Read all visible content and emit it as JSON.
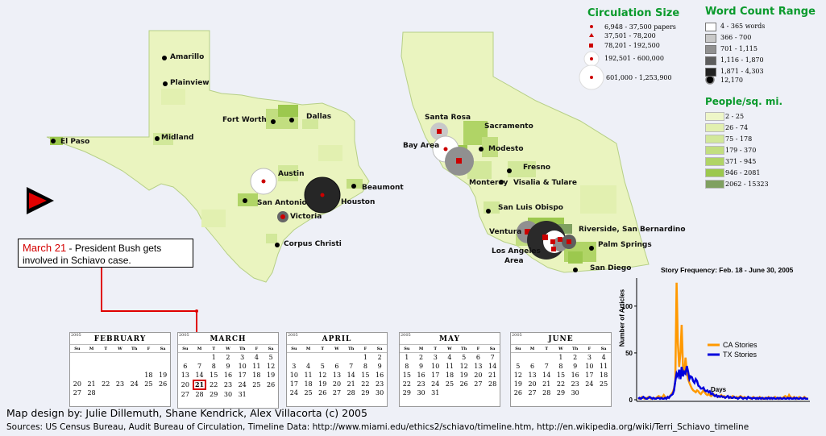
{
  "legend": {
    "circulation": {
      "title": "Circulation Size",
      "items": [
        "6,948 - 37,500 papers",
        "37,501 - 78,200",
        "78,201 - 192,500",
        "192,501 - 600,000",
        "601,000 - 1,253,900"
      ]
    },
    "word_count": {
      "title": "Word Count Range",
      "items": [
        {
          "label": "4 - 365 words",
          "color": "#ffffff"
        },
        {
          "label": "366 - 700",
          "color": "#c8c8c8"
        },
        {
          "label": "701 - 1,115",
          "color": "#909090"
        },
        {
          "label": "1,116 - 1,870",
          "color": "#5e5e5e"
        },
        {
          "label": "1,871 - 4,303",
          "color": "#222222"
        },
        {
          "label": "12,170",
          "color": "#000000"
        }
      ]
    },
    "density": {
      "title": "People/sq. mi.",
      "items": [
        {
          "label": "2 - 25",
          "color": "#eef6c8"
        },
        {
          "label": "26 - 74",
          "color": "#e2f0b0"
        },
        {
          "label": "75 - 178",
          "color": "#d2e89a"
        },
        {
          "label": "179 - 370",
          "color": "#c2de80"
        },
        {
          "label": "371 - 945",
          "color": "#b0d466"
        },
        {
          "label": "946 - 2081",
          "color": "#9cc84e"
        },
        {
          "label": "2062 - 15323",
          "color": "#7fa060"
        }
      ]
    }
  },
  "cities": {
    "texas": [
      "Amarillo",
      "Plainview",
      "Fort Worth",
      "Dallas",
      "El Paso",
      "Midland",
      "Austin",
      "San Antonio",
      "Houston",
      "Beaumont",
      "Victoria",
      "Corpus Christi"
    ],
    "california": [
      "Santa Rosa",
      "Sacramento",
      "Bay Area",
      "Modesto",
      "Fresno",
      "Monterey",
      "Visalia & Tulare",
      "San Luis Obispo",
      "Ventura",
      "Riverside, San Bernardino",
      "Palm Springs",
      "Los Angeles",
      "Area",
      "San Diego"
    ]
  },
  "callout": {
    "date": "March 21",
    "text": " - President Bush gets involved in Schiavo case."
  },
  "calendar": {
    "year": "2005",
    "weekdays": [
      "Su",
      "M",
      "T",
      "W",
      "Th",
      "F",
      "Sa"
    ],
    "months": [
      {
        "name": "FEBRUARY",
        "weeks": [
          [
            "",
            "",
            "",
            "",
            "",
            "",
            ""
          ],
          [
            "",
            "",
            "",
            "",
            "",
            "",
            ""
          ],
          [
            "",
            "",
            "",
            "",
            "",
            "18",
            "19"
          ],
          [
            "20",
            "21",
            "22",
            "23",
            "24",
            "25",
            "26"
          ],
          [
            "27",
            "28",
            "",
            "",
            "",
            "",
            ""
          ],
          [
            "",
            "",
            "",
            "",
            "",
            "",
            ""
          ]
        ]
      },
      {
        "name": "MARCH",
        "weeks": [
          [
            "",
            "",
            "1",
            "2",
            "3",
            "4",
            "5"
          ],
          [
            "6",
            "7",
            "8",
            "9",
            "10",
            "11",
            "12"
          ],
          [
            "13",
            "14",
            "15",
            "16",
            "17",
            "18",
            "19"
          ],
          [
            "20",
            "21",
            "22",
            "23",
            "24",
            "25",
            "26"
          ],
          [
            "27",
            "28",
            "29",
            "30",
            "31",
            "",
            ""
          ],
          [
            "",
            "",
            "",
            "",
            "",
            "",
            ""
          ]
        ]
      },
      {
        "name": "APRIL",
        "weeks": [
          [
            "",
            "",
            "",
            "",
            "",
            "1",
            "2"
          ],
          [
            "3",
            "4",
            "5",
            "6",
            "7",
            "8",
            "9"
          ],
          [
            "10",
            "11",
            "12",
            "13",
            "14",
            "15",
            "16"
          ],
          [
            "17",
            "18",
            "19",
            "20",
            "21",
            "22",
            "23"
          ],
          [
            "24",
            "25",
            "26",
            "27",
            "28",
            "29",
            "30"
          ],
          [
            "",
            "",
            "",
            "",
            "",
            "",
            ""
          ]
        ]
      },
      {
        "name": "MAY",
        "weeks": [
          [
            "1",
            "2",
            "3",
            "4",
            "5",
            "6",
            "7"
          ],
          [
            "8",
            "9",
            "10",
            "11",
            "12",
            "13",
            "14"
          ],
          [
            "15",
            "16",
            "17",
            "18",
            "19",
            "20",
            "21"
          ],
          [
            "22",
            "23",
            "24",
            "25",
            "26",
            "27",
            "28"
          ],
          [
            "29",
            "30",
            "31",
            "",
            "",
            "",
            ""
          ],
          [
            "",
            "",
            "",
            "",
            "",
            "",
            ""
          ]
        ]
      },
      {
        "name": "JUNE",
        "weeks": [
          [
            "",
            "",
            "",
            "1",
            "2",
            "3",
            "4"
          ],
          [
            "5",
            "6",
            "7",
            "8",
            "9",
            "10",
            "11"
          ],
          [
            "12",
            "13",
            "14",
            "15",
            "16",
            "17",
            "18"
          ],
          [
            "19",
            "20",
            "21",
            "22",
            "23",
            "24",
            "25"
          ],
          [
            "26",
            "27",
            "28",
            "29",
            "30",
            "",
            ""
          ],
          [
            "",
            "",
            "",
            "",
            "",
            "",
            ""
          ]
        ]
      }
    ],
    "selected": {
      "month": "MARCH",
      "day": "21"
    }
  },
  "chart_data": {
    "type": "line",
    "title": "Story Frequency: Feb. 18 - June 30, 2005",
    "xlabel": "Days",
    "ylabel": "Number of Articles",
    "ylim": [
      0,
      130
    ],
    "yticks": [
      0,
      50,
      100
    ],
    "series": [
      {
        "name": "CA Stories",
        "color": "#ff9900",
        "values": [
          2,
          1,
          2,
          3,
          2,
          1,
          2,
          2,
          3,
          2,
          1,
          2,
          2,
          1,
          2,
          3,
          4,
          3,
          2,
          3,
          5,
          3,
          2,
          2,
          3,
          4,
          6,
          8,
          12,
          20,
          125,
          60,
          35,
          50,
          80,
          35,
          28,
          45,
          30,
          22,
          18,
          15,
          12,
          10,
          9,
          8,
          10,
          9,
          7,
          6,
          8,
          10,
          8,
          6,
          5,
          6,
          5,
          4,
          5,
          6,
          4,
          5,
          4,
          3,
          4,
          5,
          3,
          4,
          3,
          3,
          4,
          3,
          2,
          3,
          4,
          3,
          2,
          3,
          2,
          3,
          4,
          3,
          2,
          3,
          2,
          2,
          3,
          2,
          1,
          2,
          3,
          2,
          2,
          1,
          2,
          3,
          2,
          1,
          2,
          2,
          1,
          2,
          3,
          2,
          1,
          2,
          2,
          3,
          2,
          1,
          2,
          1,
          2,
          2,
          3,
          4,
          3,
          2,
          5,
          3,
          2,
          2,
          3,
          2,
          1,
          2,
          3,
          2,
          1,
          2,
          3,
          2,
          1,
          1
        ]
      },
      {
        "name": "TX Stories",
        "color": "#0000dd",
        "values": [
          1,
          2,
          1,
          2,
          3,
          2,
          1,
          1,
          2,
          3,
          2,
          1,
          2,
          1,
          1,
          2,
          2,
          1,
          2,
          1,
          1,
          2,
          1,
          3,
          2,
          4,
          5,
          6,
          10,
          20,
          28,
          25,
          32,
          22,
          35,
          25,
          30,
          28,
          36,
          30,
          22,
          25,
          24,
          20,
          18,
          22,
          20,
          15,
          14,
          12,
          12,
          13,
          10,
          9,
          10,
          8,
          9,
          6,
          7,
          5,
          4,
          5,
          3,
          4,
          3,
          4,
          3,
          3,
          2,
          3,
          4,
          2,
          3,
          2,
          2,
          3,
          2,
          2,
          1,
          2,
          3,
          2,
          1,
          2,
          2,
          1,
          3,
          2,
          2,
          1,
          2,
          2,
          1,
          2,
          1,
          2,
          1,
          2,
          1,
          1,
          2,
          1,
          2,
          1,
          2,
          1,
          2,
          1,
          1,
          2,
          1,
          2,
          1,
          1,
          2,
          1,
          1,
          2,
          1,
          2,
          1,
          1,
          2,
          1,
          2,
          1,
          1,
          2,
          1,
          1,
          2,
          1,
          1,
          1
        ]
      }
    ]
  },
  "credit": "Map design by: Julie Dillemuth, Shane Kendrick, Alex Villacorta (c)  2005",
  "sources": "Sources: US Census Bureau, Audit Bureau of Circulation, Timeline Data: http://www.miami.edu/ethics2/schiavo/timeline.htm, http://en.wikipedia.org/wiki/Terri_Schiavo_timeline"
}
